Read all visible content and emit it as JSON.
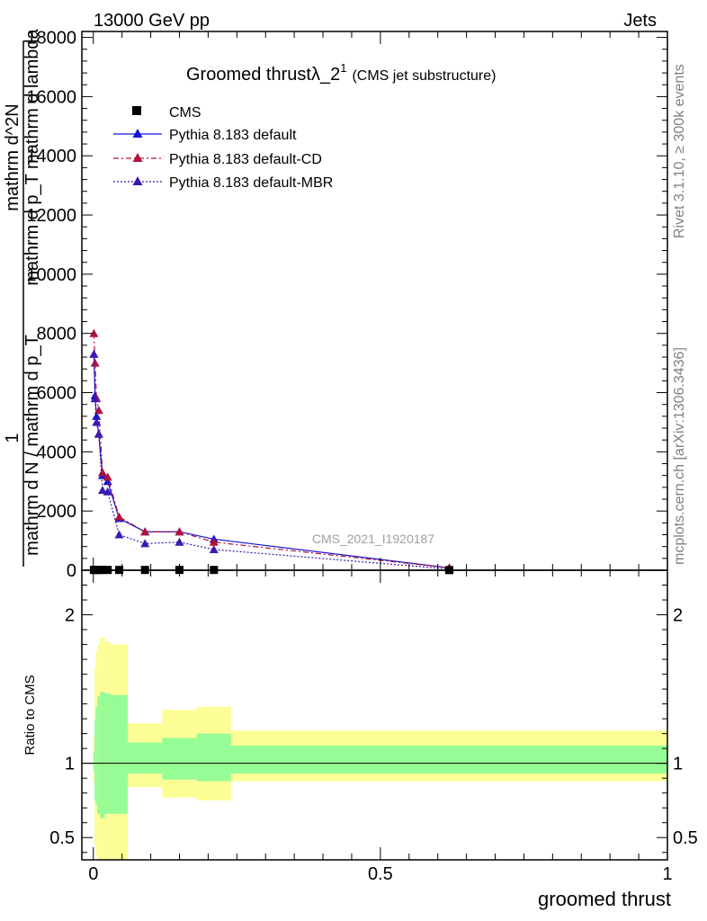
{
  "header": {
    "left": "13000 GeV pp",
    "right": "Jets"
  },
  "side": {
    "rivet": "Rivet 3.1.10, ≥ 300k events",
    "mcplots": "mcplots.cern.ch [arXiv:1306.3436]"
  },
  "chart_data": {
    "type": "line",
    "title": "Groomed thrustλ_2",
    "title_sup": "1",
    "subtitle": "(CMS jet substructure)",
    "watermark": "CMS_2021_I1920187",
    "xlabel": "groomed thrust",
    "ylabel_parts": [
      "1",
      "mathrm d N / mathrm d p_T",
      "mathrm d^2N",
      "mathrm d p_T mathrm d lambda"
    ],
    "ratio_ylabel": "Ratio to CMS",
    "xlim": [
      -0.02,
      1.0
    ],
    "ylim": [
      0,
      18200
    ],
    "ratio_ylim": [
      0.35,
      2.3
    ],
    "x_ticks": [
      {
        "v": 0,
        "label": "0"
      },
      {
        "v": 0.5,
        "label": "0.5"
      },
      {
        "v": 1,
        "label": "1"
      }
    ],
    "y_ticks": [
      {
        "v": 0,
        "label": "0"
      },
      {
        "v": 2000,
        "label": "2000"
      },
      {
        "v": 4000,
        "label": "4000"
      },
      {
        "v": 6000,
        "label": "6000"
      },
      {
        "v": 8000,
        "label": "8000"
      },
      {
        "v": 10000,
        "label": "10000"
      },
      {
        "v": 12000,
        "label": "12000"
      },
      {
        "v": 14000,
        "label": "14000"
      },
      {
        "v": 16000,
        "label": "16000"
      },
      {
        "v": 18000,
        "label": "18000"
      }
    ],
    "ratio_y_ticks": [
      {
        "v": 0.5,
        "label": "0.5"
      },
      {
        "v": 1,
        "label": "1"
      },
      {
        "v": 2,
        "label": "2"
      }
    ],
    "bin_edges": [
      0.0,
      0.002,
      0.004,
      0.007,
      0.012,
      0.02,
      0.03,
      0.06,
      0.12,
      0.18,
      0.24,
      1.0
    ],
    "bands": {
      "inner_low": [
        0.95,
        0.75,
        0.72,
        0.66,
        0.63,
        0.66,
        0.66,
        0.93,
        0.89,
        0.88,
        0.93
      ],
      "inner_high": [
        1.08,
        1.29,
        1.38,
        1.45,
        1.48,
        1.47,
        1.46,
        1.14,
        1.17,
        1.2,
        1.12
      ],
      "outer_low": [
        0.88,
        0.45,
        0.38,
        0.35,
        0.35,
        0.35,
        0.35,
        0.84,
        0.77,
        0.75,
        0.88
      ],
      "outer_high": [
        1.18,
        1.65,
        1.75,
        1.8,
        1.85,
        1.82,
        1.8,
        1.27,
        1.36,
        1.38,
        1.22
      ]
    },
    "cms": {
      "name": "CMS",
      "x": [
        0.001,
        0.003,
        0.0055,
        0.0095,
        0.016,
        0.025,
        0.045,
        0.09,
        0.15,
        0.21,
        0.62
      ],
      "y": [
        10,
        10,
        10,
        10,
        10,
        10,
        10,
        10,
        10,
        10,
        5
      ]
    },
    "series": [
      {
        "name": "Pythia 8.183 default",
        "color": "#1515d6",
        "dash": "",
        "x": [
          0.001,
          0.003,
          0.0055,
          0.0095,
          0.016,
          0.025,
          0.045,
          0.09,
          0.15,
          0.21,
          0.62
        ],
        "y": [
          7300,
          5900,
          5200,
          4600,
          3200,
          3000,
          1750,
          1300,
          1300,
          1050,
          80
        ]
      },
      {
        "name": "Pythia 8.183 default-CD",
        "color": "#b0123a",
        "dash": "6,3,2,3",
        "x": [
          0.001,
          0.003,
          0.0055,
          0.0095,
          0.016,
          0.025,
          0.045,
          0.09,
          0.15,
          0.21,
          0.62
        ],
        "y": [
          8000,
          7000,
          5800,
          5400,
          3300,
          3150,
          1800,
          1300,
          1300,
          950,
          80
        ]
      },
      {
        "name": "Pythia 8.183 default-MBR",
        "color": "#3a1ab0",
        "dash": "2,2",
        "x": [
          0.001,
          0.003,
          0.0055,
          0.0095,
          0.016,
          0.025,
          0.045,
          0.09,
          0.15,
          0.21,
          0.62
        ],
        "y": [
          7300,
          5800,
          5000,
          4600,
          2700,
          2650,
          1200,
          900,
          950,
          700,
          40
        ]
      }
    ]
  }
}
